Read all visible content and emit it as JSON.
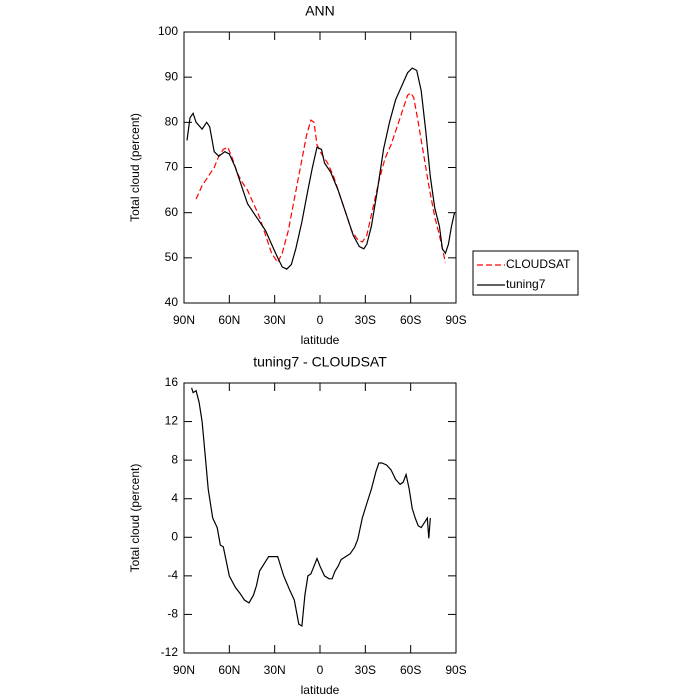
{
  "chart_data": [
    {
      "type": "line",
      "title": "ANN",
      "x_label": "latitude",
      "y_label": "Total cloud (percent)",
      "xlim": [
        90,
        -90
      ],
      "xticks": [
        {
          "value": 90,
          "label": "90N"
        },
        {
          "value": 60,
          "label": "60N"
        },
        {
          "value": 30,
          "label": "30N"
        },
        0,
        {
          "value": -30,
          "label": "30S"
        },
        {
          "value": -60,
          "label": "60S"
        },
        {
          "value": -90,
          "label": "90S"
        }
      ],
      "ylim": [
        40,
        100
      ],
      "yticks": [
        40,
        50,
        60,
        70,
        80,
        90,
        100
      ],
      "legend": "outside-right",
      "series": [
        {
          "name": "CLOUDSAT",
          "color": "#ff0000",
          "dash": true,
          "x": [
            82,
            78,
            74,
            70,
            67,
            64,
            61,
            58,
            55,
            52,
            48,
            44,
            40,
            36,
            32,
            28,
            25,
            21,
            17,
            13,
            9,
            6,
            4,
            2,
            -1,
            -5,
            -9,
            -13,
            -17,
            -21,
            -25,
            -28,
            -31,
            -35,
            -39,
            -43,
            -47,
            -51,
            -55,
            -58,
            -60,
            -62,
            -65,
            -68,
            -72,
            -76,
            -79,
            -81,
            -83
          ],
          "values": [
            63,
            66,
            68,
            70,
            72.5,
            74,
            74.5,
            72,
            69,
            67,
            65,
            62,
            59,
            55,
            51,
            49,
            51,
            56,
            63,
            70,
            77,
            80.5,
            80,
            75,
            73,
            71,
            68,
            64,
            60,
            56,
            54,
            53.5,
            55,
            61,
            67,
            72,
            75,
            79,
            83,
            86,
            86.5,
            85.5,
            80,
            74,
            66,
            59,
            55,
            52,
            49
          ]
        },
        {
          "name": "tuning7",
          "color": "#000000",
          "dash": false,
          "x": [
            88,
            86,
            84,
            82,
            78,
            75,
            73,
            70,
            67,
            63,
            60,
            56,
            52,
            48,
            44,
            40,
            36,
            32,
            28,
            25,
            22,
            19,
            16,
            12,
            8,
            5,
            2,
            -1,
            -3,
            -7,
            -12,
            -17,
            -22,
            -26,
            -29,
            -31,
            -34,
            -38,
            -42,
            -46,
            -50,
            -54,
            -58,
            -61,
            -64,
            -67,
            -70,
            -73,
            -76,
            -79,
            -81,
            -83,
            -85,
            -87,
            -89
          ],
          "values": [
            76,
            81,
            82,
            80,
            78.5,
            80,
            79,
            73.5,
            72.5,
            73.5,
            73,
            70,
            66,
            62,
            60,
            58,
            56,
            53,
            50,
            48,
            47.5,
            48.5,
            52,
            58,
            65,
            70,
            74.5,
            74,
            71,
            69,
            65,
            60,
            55,
            52.5,
            52,
            53,
            57,
            65,
            74,
            80,
            85,
            88,
            91,
            92,
            91.5,
            87,
            78,
            68,
            61,
            57,
            52,
            51,
            53,
            57,
            60
          ]
        }
      ]
    },
    {
      "type": "line",
      "title": "tuning7 - CLOUDSAT",
      "x_label": "latitude",
      "y_label": "Total cloud (percent)",
      "xlim": [
        90,
        -90
      ],
      "xticks": [
        {
          "value": 90,
          "label": "90N"
        },
        {
          "value": 60,
          "label": "60N"
        },
        {
          "value": 30,
          "label": "30N"
        },
        0,
        {
          "value": -30,
          "label": "30S"
        },
        {
          "value": -60,
          "label": "60S"
        },
        {
          "value": -90,
          "label": "90S"
        }
      ],
      "ylim": [
        -12,
        16
      ],
      "yticks": [
        -12,
        -8,
        -4,
        0,
        4,
        8,
        12,
        16
      ],
      "series": [
        {
          "color": "#000000",
          "x": [
            85,
            84,
            82,
            80,
            78,
            76,
            74,
            71,
            68,
            66,
            64,
            62,
            60,
            56,
            53,
            50,
            47,
            44,
            42,
            40,
            36,
            34,
            30,
            28,
            24,
            20,
            17,
            14,
            12,
            10,
            8,
            6,
            4,
            2,
            0,
            -3,
            -6,
            -8,
            -10,
            -12,
            -14,
            -17,
            -20,
            -23,
            -25,
            -28,
            -31,
            -34,
            -37,
            -39,
            -41,
            -44,
            -47,
            -50,
            -53,
            -55,
            -57,
            -59,
            -61,
            -63,
            -65,
            -67,
            -69,
            -71,
            -72,
            -73
          ],
          "values": [
            15.5,
            15,
            15.2,
            14,
            12,
            8.5,
            5,
            2,
            1,
            -0.8,
            -1,
            -2.5,
            -4,
            -5.2,
            -5.8,
            -6.5,
            -6.8,
            -6,
            -5,
            -3.5,
            -2.5,
            -2,
            -2,
            -2,
            -4,
            -5.5,
            -6.5,
            -9,
            -9.2,
            -6,
            -4,
            -3.8,
            -3,
            -2.2,
            -3,
            -4,
            -4.3,
            -4.3,
            -3.5,
            -3,
            -2.3,
            -2,
            -1.7,
            -1,
            -0.2,
            2,
            3.5,
            5,
            6.8,
            7.7,
            7.7,
            7.5,
            7,
            6,
            5.5,
            5.7,
            6.5,
            5,
            3,
            2,
            1.2,
            1,
            1.5,
            2,
            -0.1,
            2
          ]
        }
      ]
    }
  ]
}
